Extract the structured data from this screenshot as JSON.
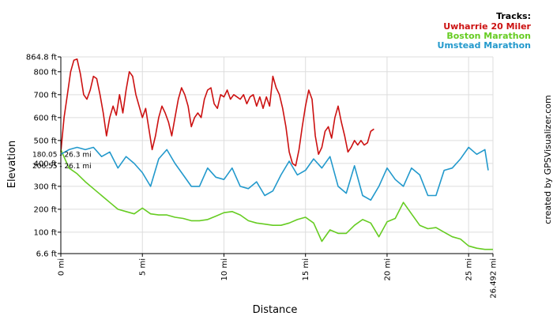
{
  "chart_data": {
    "type": "line",
    "xlabel": "Distance",
    "ylabel": "Elevation",
    "xlim": [
      0,
      26.492
    ],
    "ylim": [
      6.6,
      864.8
    ],
    "x_ticks": [
      {
        "v": 0,
        "label": "0 mi"
      },
      {
        "v": 5,
        "label": "5 mi"
      },
      {
        "v": 10,
        "label": "10 mi"
      },
      {
        "v": 15,
        "label": "15 mi"
      },
      {
        "v": 20,
        "label": "20 mi"
      },
      {
        "v": 25,
        "label": "25 mi"
      },
      {
        "v": 26.492,
        "label": "26.492 mi"
      }
    ],
    "y_ticks": [
      {
        "v": 6.6,
        "label": "6.6 ft"
      },
      {
        "v": 100,
        "label": "100 ft"
      },
      {
        "v": 200,
        "label": "200 ft"
      },
      {
        "v": 300,
        "label": "300 ft"
      },
      {
        "v": 400,
        "label": "400 ft"
      },
      {
        "v": 500,
        "label": "500 ft"
      },
      {
        "v": 600,
        "label": "600 ft"
      },
      {
        "v": 700,
        "label": "700 ft"
      },
      {
        "v": 800,
        "label": "800 ft"
      },
      {
        "v": 864.8,
        "label": "864.8 ft"
      }
    ],
    "legend_title": "Tracks:",
    "legend_position": "top-right",
    "marker_labels": [
      "180.05 - 26.3 mi",
      "206.55 - 26.1 mi"
    ],
    "marker_values": [
      {
        "x": 0,
        "y": 440
      },
      {
        "x": 0,
        "y": 390
      }
    ],
    "series": [
      {
        "name": "Uwharrie 20 Miler",
        "color": "#cc1111",
        "x": [
          0,
          0.2,
          0.4,
          0.6,
          0.8,
          1.0,
          1.2,
          1.4,
          1.6,
          1.8,
          2.0,
          2.2,
          2.4,
          2.6,
          2.8,
          3.0,
          3.2,
          3.4,
          3.6,
          3.8,
          4.0,
          4.2,
          4.4,
          4.6,
          4.8,
          5.0,
          5.2,
          5.4,
          5.6,
          5.8,
          6.0,
          6.2,
          6.4,
          6.6,
          6.8,
          7.0,
          7.2,
          7.4,
          7.6,
          7.8,
          8.0,
          8.2,
          8.4,
          8.6,
          8.8,
          9.0,
          9.2,
          9.4,
          9.6,
          9.8,
          10.0,
          10.2,
          10.4,
          10.6,
          10.8,
          11.0,
          11.2,
          11.4,
          11.6,
          11.8,
          12.0,
          12.2,
          12.4,
          12.6,
          12.8,
          13.0,
          13.2,
          13.4,
          13.6,
          13.8,
          14.0,
          14.2,
          14.4,
          14.6,
          14.8,
          15.0,
          15.2,
          15.4,
          15.6,
          15.8,
          16.0,
          16.2,
          16.4,
          16.6,
          16.8,
          17.0,
          17.2,
          17.4,
          17.6,
          17.8,
          18.0,
          18.2,
          18.4,
          18.6,
          18.8,
          19.0,
          19.2
        ],
        "y": [
          450,
          600,
          700,
          800,
          850,
          855,
          790,
          700,
          680,
          720,
          780,
          770,
          700,
          620,
          520,
          600,
          650,
          610,
          700,
          620,
          720,
          800,
          780,
          700,
          650,
          600,
          640,
          550,
          460,
          520,
          600,
          650,
          620,
          580,
          520,
          600,
          680,
          730,
          700,
          650,
          560,
          600,
          620,
          600,
          680,
          720,
          730,
          660,
          640,
          700,
          690,
          720,
          680,
          700,
          690,
          680,
          700,
          660,
          690,
          700,
          650,
          690,
          640,
          690,
          650,
          780,
          730,
          700,
          640,
          560,
          450,
          400,
          390,
          460,
          560,
          650,
          720,
          680,
          520,
          440,
          470,
          540,
          560,
          510,
          600,
          650,
          580,
          520,
          450,
          470,
          500,
          480,
          500,
          480,
          490,
          540,
          550
        ]
      },
      {
        "name": "Boston Marathon",
        "color": "#66cc22",
        "x": [
          0,
          0.5,
          1,
          1.5,
          2,
          2.5,
          3,
          3.5,
          4,
          4.5,
          5,
          5.5,
          6,
          6.5,
          7,
          7.5,
          8,
          8.5,
          9,
          9.5,
          10,
          10.5,
          11,
          11.5,
          12,
          12.5,
          13,
          13.5,
          14,
          14.5,
          15,
          15.5,
          16,
          16.5,
          17,
          17.5,
          18,
          18.5,
          19,
          19.5,
          20,
          20.5,
          21,
          21.5,
          22,
          22.5,
          23,
          23.5,
          24,
          24.5,
          25,
          25.5,
          26,
          26.492
        ],
        "y": [
          460,
          380,
          355,
          320,
          290,
          260,
          230,
          200,
          190,
          180,
          205,
          180,
          175,
          175,
          165,
          160,
          150,
          150,
          155,
          170,
          185,
          190,
          175,
          150,
          140,
          135,
          130,
          130,
          140,
          155,
          165,
          140,
          60,
          110,
          95,
          95,
          130,
          155,
          140,
          80,
          145,
          160,
          230,
          180,
          130,
          115,
          120,
          100,
          80,
          70,
          40,
          30,
          25,
          25
        ]
      },
      {
        "name": "Umstead Marathon",
        "color": "#2299cc",
        "x": [
          0,
          0.5,
          1,
          1.5,
          2,
          2.5,
          3,
          3.5,
          4,
          4.5,
          5,
          5.5,
          6,
          6.5,
          7,
          7.5,
          8,
          8.5,
          9,
          9.5,
          10,
          10.5,
          11,
          11.5,
          12,
          12.5,
          13,
          13.5,
          14,
          14.5,
          15,
          15.5,
          16,
          16.5,
          17,
          17.5,
          18,
          18.5,
          19,
          19.5,
          20,
          20.5,
          21,
          21.5,
          22,
          22.5,
          23,
          23.5,
          24,
          24.5,
          25,
          25.5,
          26,
          26.2
        ],
        "y": [
          440,
          460,
          470,
          460,
          470,
          430,
          450,
          380,
          430,
          400,
          360,
          300,
          420,
          460,
          400,
          350,
          300,
          300,
          380,
          340,
          330,
          380,
          300,
          290,
          320,
          260,
          280,
          350,
          410,
          350,
          370,
          420,
          380,
          430,
          300,
          270,
          390,
          260,
          240,
          300,
          380,
          330,
          300,
          380,
          350,
          260,
          260,
          370,
          380,
          420,
          470,
          440,
          460,
          370
        ]
      }
    ],
    "credit": "created by GPSVisualizer.com"
  }
}
